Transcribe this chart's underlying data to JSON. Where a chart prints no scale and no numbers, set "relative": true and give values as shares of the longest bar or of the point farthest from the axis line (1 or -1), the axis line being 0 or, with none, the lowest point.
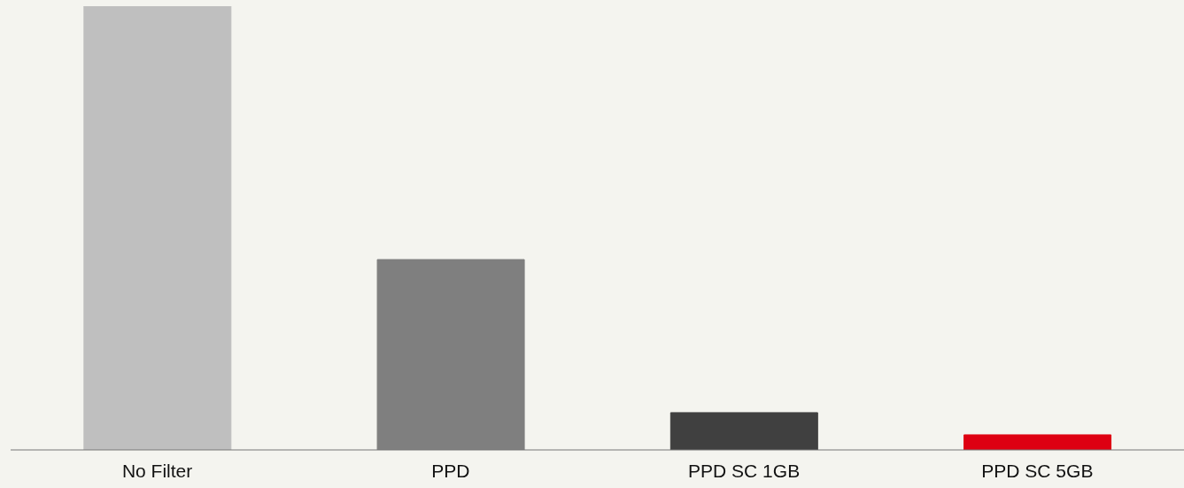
{
  "chart_data": {
    "type": "bar",
    "relative": true,
    "categories": [
      "No Filter",
      "PPD",
      "PPD SC 1GB",
      "PPD SC 5GB"
    ],
    "values": [
      1,
      0.429,
      0.084,
      0.034
    ],
    "colors": [
      "#bfbfbf",
      "#7f7f7f",
      "#404040",
      "#de0012"
    ]
  }
}
